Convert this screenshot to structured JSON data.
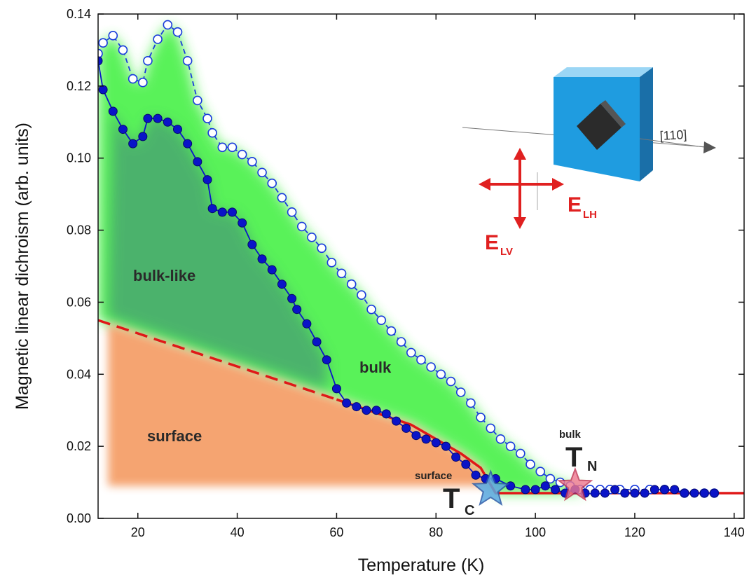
{
  "chart_data": {
    "type": "scatter",
    "xlabel": "Temperature (K)",
    "ylabel": "Magnetic linear dichroism (arb. units)",
    "xlim": [
      12,
      142
    ],
    "ylim": [
      0,
      0.14
    ],
    "x_ticks": [
      "20",
      "40",
      "60",
      "80",
      "100",
      "120",
      "140"
    ],
    "y_ticks": [
      "0.00",
      "0.02",
      "0.04",
      "0.06",
      "0.08",
      "0.10",
      "0.12",
      "0.14"
    ],
    "grid": false,
    "colors": {
      "filled_series": "#0a14c8",
      "open_series": "#1a3cdc",
      "fit_line": "#e01818",
      "bulk_region": "#3cf03c",
      "bulk_like_region": "#4aa870",
      "surface_region": "#f5a06a",
      "tc_star": "#5aa8e0",
      "tn_star": "#f07890"
    },
    "series": [
      {
        "style": "filled-circles-solid-line",
        "x": [
          12,
          13,
          15,
          17,
          19,
          21,
          22,
          24,
          26,
          28,
          30,
          32,
          34,
          35,
          37,
          39,
          41,
          43,
          45,
          47,
          49,
          51,
          52,
          54,
          56,
          58,
          60,
          62,
          64,
          66,
          68,
          70,
          72,
          74,
          76,
          78,
          80,
          82,
          84,
          86,
          88,
          90,
          92,
          95,
          98,
          100,
          102,
          104,
          106,
          108,
          110,
          112,
          114,
          116,
          118,
          120,
          122,
          124,
          126,
          128,
          130,
          132,
          134,
          136
        ],
        "y": [
          0.127,
          0.119,
          0.113,
          0.108,
          0.104,
          0.106,
          0.111,
          0.111,
          0.11,
          0.108,
          0.104,
          0.099,
          0.094,
          0.086,
          0.085,
          0.085,
          0.082,
          0.076,
          0.072,
          0.069,
          0.065,
          0.061,
          0.058,
          0.054,
          0.049,
          0.044,
          0.036,
          0.032,
          0.031,
          0.03,
          0.03,
          0.029,
          0.027,
          0.025,
          0.023,
          0.022,
          0.021,
          0.02,
          0.017,
          0.015,
          0.012,
          0.011,
          0.011,
          0.009,
          0.008,
          0.008,
          0.009,
          0.008,
          0.007,
          0.008,
          0.007,
          0.007,
          0.007,
          0.008,
          0.007,
          0.007,
          0.007,
          0.008,
          0.008,
          0.008,
          0.007,
          0.007,
          0.007,
          0.007
        ]
      },
      {
        "style": "open-circles-dashed-line",
        "x": [
          12,
          13,
          15,
          17,
          19,
          21,
          22,
          24,
          26,
          28,
          30,
          32,
          34,
          35,
          37,
          39,
          41,
          43,
          45,
          47,
          49,
          51,
          53,
          55,
          57,
          59,
          61,
          63,
          65,
          67,
          69,
          71,
          73,
          75,
          77,
          79,
          81,
          83,
          85,
          87,
          89,
          91,
          93,
          95,
          97,
          99,
          101,
          103,
          105,
          107,
          109,
          111,
          113,
          115,
          117,
          120,
          123,
          126,
          130,
          134,
          136
        ],
        "y": [
          0.129,
          0.132,
          0.134,
          0.13,
          0.122,
          0.121,
          0.127,
          0.133,
          0.137,
          0.135,
          0.127,
          0.116,
          0.111,
          0.107,
          0.103,
          0.103,
          0.101,
          0.099,
          0.096,
          0.093,
          0.089,
          0.085,
          0.081,
          0.078,
          0.075,
          0.071,
          0.068,
          0.065,
          0.062,
          0.058,
          0.055,
          0.052,
          0.049,
          0.046,
          0.044,
          0.042,
          0.04,
          0.038,
          0.035,
          0.032,
          0.028,
          0.025,
          0.022,
          0.02,
          0.018,
          0.015,
          0.013,
          0.011,
          0.01,
          0.009,
          0.008,
          0.008,
          0.008,
          0.008,
          0.008,
          0.008,
          0.008,
          0.008,
          0.007,
          0.007,
          0.007
        ]
      }
    ],
    "fit_line": {
      "solid": {
        "x": [
          60,
          75,
          85,
          89,
          92,
          142
        ],
        "y": [
          0.033,
          0.026,
          0.018,
          0.014,
          0.007,
          0.007
        ]
      },
      "dashed": {
        "x": [
          12,
          60
        ],
        "y": [
          0.055,
          0.033
        ]
      }
    },
    "regions": {
      "bulk_like": "bulk-like",
      "bulk": "bulk",
      "surface": "surface"
    },
    "annotations": {
      "tc_prefix": "surface",
      "tc_main": "T",
      "tc_sub": "C",
      "tc_point": {
        "x": 91,
        "y": 0.008
      },
      "tn_prefix": "bulk",
      "tn_main": "T",
      "tn_sub": "N",
      "tn_point": {
        "x": 108,
        "y": 0.009
      }
    },
    "inset": {
      "direction_label": "[110]",
      "e_lh_main": "E",
      "e_lh_sub": "LH",
      "e_lv_main": "E",
      "e_lv_sub": "LV"
    }
  }
}
